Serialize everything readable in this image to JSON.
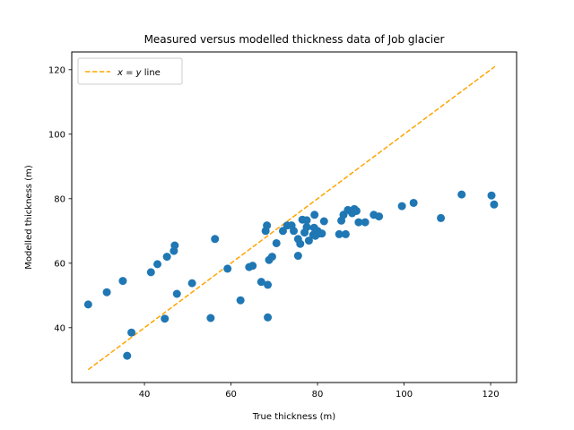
{
  "chart_data": {
    "type": "scatter",
    "title": "Measured versus modelled thickness data of Job glacier",
    "xlabel": "True thickness (m)",
    "ylabel": "Modelled thickness (m)",
    "xlim": [
      23.2,
      126.0
    ],
    "ylim": [
      23.0,
      125.5
    ],
    "xticks": [
      40,
      60,
      80,
      100,
      120
    ],
    "yticks": [
      40,
      60,
      80,
      100,
      120
    ],
    "grid": false,
    "legend": {
      "location": "upper-left",
      "entries": [
        {
          "label_prefix": "x",
          "label_eq": " = ",
          "label_var": "y",
          "label_suffix": " line",
          "style": "dashed",
          "color": "#ffa500"
        }
      ]
    },
    "reference_line": {
      "x": [
        27.0,
        121.0
      ],
      "y": [
        27.0,
        121.0
      ],
      "color": "#ffa500",
      "style": "dashed"
    },
    "series": [
      {
        "color": "#1f77b4",
        "points": [
          [
            27,
            47.2
          ],
          [
            31.3,
            51
          ],
          [
            35,
            54.5
          ],
          [
            36,
            31.3
          ],
          [
            37,
            38.5
          ],
          [
            41.5,
            57.2
          ],
          [
            43,
            59.7
          ],
          [
            44.7,
            42.8
          ],
          [
            45.2,
            62
          ],
          [
            46.8,
            63.8
          ],
          [
            47,
            65.5
          ],
          [
            47.5,
            50.5
          ],
          [
            51,
            53.8
          ],
          [
            55.3,
            43
          ],
          [
            56.3,
            67.5
          ],
          [
            59.2,
            58.3
          ],
          [
            62.2,
            48.5
          ],
          [
            64.2,
            58.8
          ],
          [
            65,
            59.2
          ],
          [
            67,
            54.2
          ],
          [
            68,
            70
          ],
          [
            68.3,
            71.7
          ],
          [
            68.5,
            43.2
          ],
          [
            68.5,
            53.3
          ],
          [
            68.8,
            61
          ],
          [
            69.5,
            62
          ],
          [
            70.5,
            66.2
          ],
          [
            72,
            70
          ],
          [
            73,
            71.7
          ],
          [
            74,
            71.7
          ],
          [
            74.5,
            70
          ],
          [
            75.5,
            62.3
          ],
          [
            75.5,
            67.5
          ],
          [
            76,
            66
          ],
          [
            76.5,
            73.5
          ],
          [
            77,
            69.5
          ],
          [
            77.5,
            71.2
          ],
          [
            77.5,
            73.3
          ],
          [
            78,
            67
          ],
          [
            79,
            68.8
          ],
          [
            79.2,
            71
          ],
          [
            79.3,
            75
          ],
          [
            79.5,
            68.5
          ],
          [
            80,
            70
          ],
          [
            80.3,
            69.2
          ],
          [
            81,
            69.2
          ],
          [
            81.5,
            73
          ],
          [
            85,
            69
          ],
          [
            85.5,
            73.2
          ],
          [
            86,
            75
          ],
          [
            86.5,
            69
          ],
          [
            87,
            76.5
          ],
          [
            88,
            75.5
          ],
          [
            88.5,
            76.8
          ],
          [
            89,
            76.2
          ],
          [
            89.5,
            72.7
          ],
          [
            91,
            72.7
          ],
          [
            93,
            75
          ],
          [
            94.2,
            74.5
          ],
          [
            99.5,
            77.7
          ],
          [
            102.2,
            78.7
          ],
          [
            108.5,
            74
          ],
          [
            113.3,
            81.3
          ],
          [
            120.2,
            81
          ],
          [
            120.8,
            78.2
          ]
        ]
      }
    ]
  }
}
